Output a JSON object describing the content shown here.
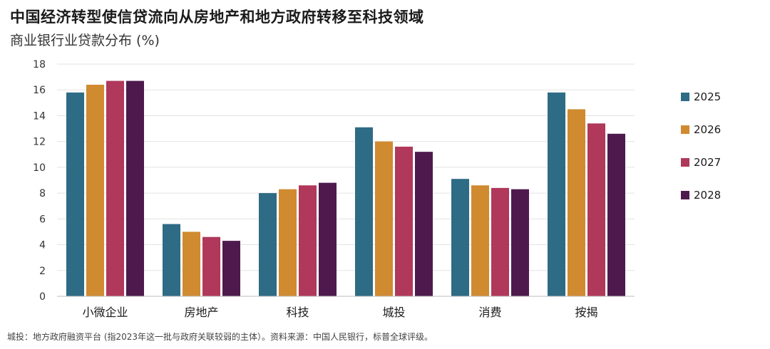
{
  "header": {
    "title": "中国经济转型使信贷流向从房地产和地方政府转移至科技领域",
    "subtitle": "商业银行业贷款分布 (%)"
  },
  "footnote": "城投：地方政府融资平台 (指2023年这一批与政府关联较弱的主体）。资料来源：中国人民银行，标普全球评级。",
  "chart_data": {
    "type": "bar",
    "title": "中国经济转型使信贷流向从房地产和地方政府转移至科技领域",
    "subtitle": "商业银行业贷款分布 (%)",
    "categories": [
      "小微企业",
      "房地产",
      "科技",
      "城投",
      "消费",
      "按揭"
    ],
    "series": [
      {
        "name": "2025",
        "color": "#2e6b85",
        "values": [
          15.8,
          5.6,
          8.0,
          13.1,
          9.1,
          15.8
        ]
      },
      {
        "name": "2026",
        "color": "#d08a30",
        "values": [
          16.4,
          5.0,
          8.3,
          12.0,
          8.6,
          14.5
        ]
      },
      {
        "name": "2027",
        "color": "#b0385a",
        "values": [
          16.7,
          4.6,
          8.6,
          11.6,
          8.4,
          13.4
        ]
      },
      {
        "name": "2028",
        "color": "#4e1a4e",
        "values": [
          16.7,
          4.3,
          8.8,
          11.2,
          8.3,
          12.6
        ]
      }
    ],
    "ylim": [
      0,
      18
    ],
    "yticks": [
      "0",
      "2",
      "4",
      "6",
      "8",
      "10",
      "12",
      "14",
      "16",
      "18"
    ],
    "grid": true,
    "legend": "right"
  }
}
